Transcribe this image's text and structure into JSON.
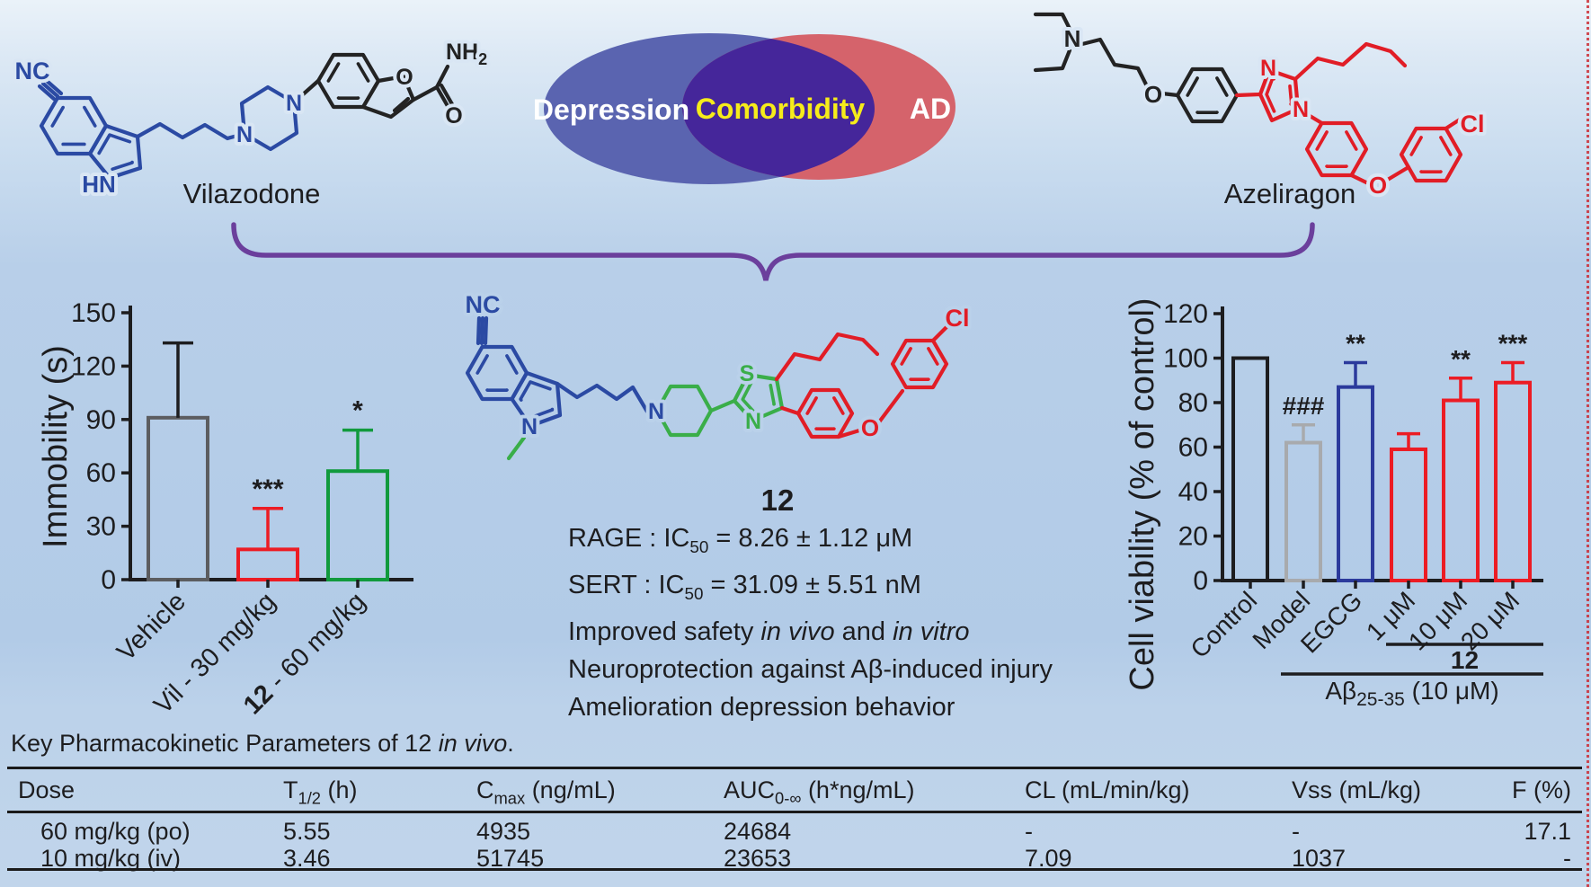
{
  "figure": {
    "vilazodone_label": "Vilazodone",
    "azeliragon_label": "Azeliragon"
  },
  "venn": {
    "left": "Depression",
    "center": "Comorbidity",
    "right": "AD",
    "left_color": "#5a64b0",
    "right_color": "#d5636b",
    "overlap_color": "#45269a",
    "left_text_color": "#ffffff",
    "center_text_color": "#f6ec1a",
    "right_text_color": "#ffffff"
  },
  "colors": {
    "structure_blue": "#2b4aa3",
    "structure_red": "#e11d26",
    "structure_green": "#3aae49",
    "structure_black": "#232323",
    "brace_purple": "#6b3f9c"
  },
  "atoms": {
    "vilazodone": {
      "nc": "NC",
      "hn": "HN",
      "n1": "N",
      "n2": "N",
      "o_furan": "O",
      "o_carbonyl": "O",
      "nh": "NH",
      "nh_sub": "2"
    },
    "azeliragon": {
      "n_amine": "N",
      "o_ether": "O",
      "n_imid_top": "N",
      "n_imid_bottom": "N",
      "o_ether2": "O",
      "cl": "Cl"
    },
    "compound12": {
      "nc": "NC",
      "n_indole": "N",
      "n_piperidine": "N",
      "s_thiazole": "S",
      "n_thiazole": "N",
      "o_ether": "O",
      "cl": "Cl"
    }
  },
  "compound_text": {
    "id": "12",
    "lines": [
      {
        "a": "RAGE : IC",
        "sub": "50",
        "b": " = 8.26 ± 1.12 μM"
      },
      {
        "a": "SERT : IC",
        "sub": "50",
        "b": " = 31.09 ± 5.51 nM"
      },
      {
        "a": "Improved safety ",
        "i1": "in vivo",
        "b": " and ",
        "i2": "in vitro"
      },
      {
        "a": "Neuroprotection against Aβ-induced injury"
      },
      {
        "a": "Amelioration depression behavior"
      }
    ]
  },
  "chart_data": [
    {
      "type": "bar",
      "ylabel": "Immobility (s)",
      "ylim": [
        0,
        150
      ],
      "yticks": [
        0,
        30,
        60,
        90,
        120,
        150
      ],
      "categories": [
        "Vehicle",
        "Vil - 30 mg/kg",
        "12 - 60 mg/kg"
      ],
      "bold_prefix": [
        null,
        null,
        "12"
      ],
      "values": [
        91,
        17,
        61
      ],
      "errors_plus": [
        42,
        23,
        23
      ],
      "bar_colors": [
        "#5c5d60",
        "#ec1c24",
        "#119a3d"
      ],
      "error_colors": [
        "#1d1d1f",
        "#ec1c24",
        "#119a3d"
      ],
      "annotations": [
        "",
        "***",
        "*"
      ],
      "grid": false,
      "legend": "none"
    },
    {
      "type": "bar",
      "ylabel": "Cell viability (% of control)",
      "ylim": [
        0,
        120
      ],
      "yticks": [
        0,
        20,
        40,
        60,
        80,
        100,
        120
      ],
      "categories": [
        "Control",
        "Model",
        "EGCG",
        "1 μM",
        "10 μM",
        "20 μM"
      ],
      "values": [
        100,
        62,
        87,
        59,
        81,
        89
      ],
      "errors_plus": [
        0,
        8,
        11,
        7,
        10,
        9
      ],
      "bar_colors": [
        "#1d1d1f",
        "#a8aaad",
        "#2b3a9c",
        "#ec1c24",
        "#ec1c24",
        "#ec1c24"
      ],
      "error_colors": [
        "#1d1d1f",
        "#a8aaad",
        "#2b3a9c",
        "#ec1c24",
        "#ec1c24",
        "#ec1c24"
      ],
      "annotations": [
        "",
        "###",
        "**",
        "",
        "**",
        "***"
      ],
      "group_annotations": [
        {
          "text": "12",
          "bold": true,
          "from": 3,
          "to": 5
        },
        {
          "text_main": "Aβ",
          "text_sub": "25-35",
          "text_rest": " (10 μM)",
          "from": 1,
          "to": 5
        }
      ],
      "grid": false,
      "legend": "none"
    }
  ],
  "table": {
    "title": {
      "a": "Key Pharmacokinetic Parameters of 12 ",
      "i": "in vivo",
      "b": "."
    },
    "headers": [
      {
        "main": "Dose"
      },
      {
        "main": "T",
        "sub": "1/2",
        "rest": " (h)"
      },
      {
        "main": "C",
        "sub": "max",
        "rest": " (ng/mL)"
      },
      {
        "main": "AUC",
        "sub": "0-∞",
        "rest": " (h*ng/mL)"
      },
      {
        "main": "CL (mL/min/kg)"
      },
      {
        "main": "Vss (mL/kg)"
      },
      {
        "main": "F (%)"
      }
    ],
    "rows": [
      [
        "60 mg/kg (po)",
        "5.55",
        "4935",
        "24684",
        "-",
        "-",
        "17.1"
      ],
      [
        "10 mg/kg (iv)",
        "3.46",
        "51745",
        "23653",
        "7.09",
        "1037",
        "-"
      ]
    ]
  }
}
